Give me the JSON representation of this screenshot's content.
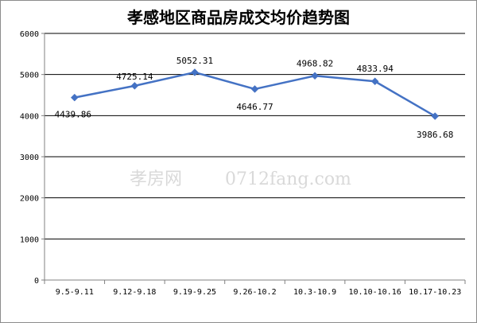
{
  "chart_data": {
    "type": "line",
    "title": "孝感地区商品房成交均价趋势图",
    "categories": [
      "9.5-9.11",
      "9.12-9.18",
      "9.19-9.25",
      "9.26-10.2",
      "10.3-10.9",
      "10.10-10.16",
      "10.17-10.23"
    ],
    "values": [
      4439.86,
      4725.14,
      5052.31,
      4646.77,
      4968.82,
      4833.94,
      3986.68
    ],
    "value_labels": [
      "4439.86",
      "4725.14",
      "5052.31",
      "4646.77",
      "4968.82",
      "4833.94",
      "3986.68"
    ],
    "ylim": [
      0,
      6000
    ],
    "yticks": [
      "0",
      "1000",
      "2000",
      "3000",
      "4000",
      "5000",
      "6000"
    ],
    "grid": true,
    "line_color": "#4472c4",
    "xlabel": "",
    "ylabel": ""
  },
  "watermark": {
    "glyphs": "孝房网",
    "url": "0712fang.com"
  }
}
